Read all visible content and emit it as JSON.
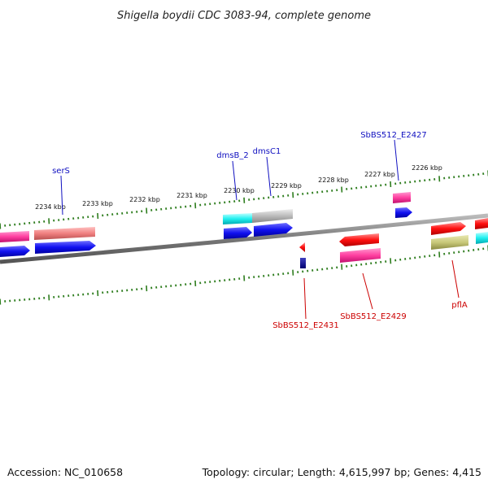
{
  "title": "Shigella boydii CDC 3083-94, complete genome",
  "footer": {
    "accession": "Accession: NC_010658",
    "summary": "Topology: circular; Length: 4,615,997 bp; Genes: 4,415"
  },
  "scale": {
    "unit_suffix": " kbp",
    "ticks": [
      2226,
      2227,
      2228,
      2229,
      2230,
      2231,
      2232,
      2233,
      2234
    ]
  },
  "colors": {
    "backbone": "#888888",
    "tick": "#2e7d1e",
    "label_top": "#1010c0",
    "label_bottom": "#cc0000"
  },
  "genes": {
    "serS": "serS",
    "dmsB_2": "dmsB_2",
    "dmsC1": "dmsC1",
    "SbBS512_E2427": "SbBS512_E2427",
    "SbBS512_E2431": "SbBS512_E2431",
    "SbBS512_E2429": "SbBS512_E2429",
    "pflA": "pflA"
  }
}
